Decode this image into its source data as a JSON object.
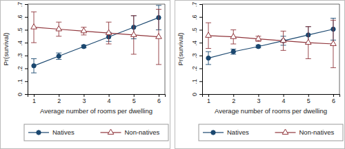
{
  "chart_data": [
    {
      "type": "line",
      "x_label": "Average number of rooms per dwelling",
      "y_label": "Pr(survival)",
      "x": [
        1,
        2,
        3,
        4,
        5,
        6
      ],
      "xlim": [
        0.75,
        6.25
      ],
      "xticks": [
        1,
        2,
        3,
        4,
        5,
        6
      ],
      "ylim": [
        0,
        0.7
      ],
      "yticks": [
        0,
        {
          "value": 0.1,
          "label": ".1"
        },
        {
          "value": 0.2,
          "label": ".2"
        },
        {
          "value": 0.3,
          "label": ".3"
        },
        {
          "value": 0.4,
          "label": ".4"
        },
        {
          "value": 0.5,
          "label": ".5"
        },
        {
          "value": 0.6,
          "label": ".6"
        },
        {
          "value": 0.7,
          "label": ".7"
        }
      ],
      "grid": false,
      "legend": "bottom",
      "series": [
        {
          "name": "Natives",
          "color": "#1a476f",
          "marker": "circle",
          "line_style": "solid",
          "values": [
            0.22,
            0.295,
            0.37,
            0.445,
            0.52,
            0.595
          ],
          "errors": [
            0.055,
            0.025,
            0.01,
            0.035,
            0.09,
            0.095
          ]
        },
        {
          "name": "Non-natives",
          "color": "#90353b",
          "marker": "triangle-open",
          "line_style": "solid",
          "values": [
            0.52,
            0.505,
            0.49,
            0.475,
            0.46,
            0.445
          ],
          "errors": [
            0.12,
            0.055,
            0.03,
            0.085,
            0.15,
            0.215
          ]
        }
      ]
    },
    {
      "type": "line",
      "x_label": "Average number of rooms per dwelling",
      "y_label": "Pr(survival)",
      "x": [
        1,
        2,
        3,
        4,
        5,
        6
      ],
      "xlim": [
        0.75,
        6.25
      ],
      "xticks": [
        1,
        2,
        3,
        4,
        5,
        6
      ],
      "ylim": [
        0,
        0.7
      ],
      "yticks": [
        0,
        {
          "value": 0.1,
          "label": ".1"
        },
        {
          "value": 0.2,
          "label": ".2"
        },
        {
          "value": 0.3,
          "label": ".3"
        },
        {
          "value": 0.4,
          "label": ".4"
        },
        {
          "value": 0.5,
          "label": ".5"
        },
        {
          "value": 0.6,
          "label": ".6"
        },
        {
          "value": 0.7,
          "label": ".7"
        }
      ],
      "grid": false,
      "legend": "bottom",
      "series": [
        {
          "name": "Natives",
          "color": "#1a476f",
          "marker": "circle",
          "line_style": "solid",
          "values": [
            0.28,
            0.33,
            0.37,
            0.415,
            0.46,
            0.505
          ],
          "errors": [
            0.05,
            0.02,
            0.01,
            0.035,
            0.065,
            0.085
          ]
        },
        {
          "name": "Non-natives",
          "color": "#90353b",
          "marker": "triangle-open",
          "line_style": "solid",
          "values": [
            0.455,
            0.445,
            0.43,
            0.415,
            0.4,
            0.39
          ],
          "errors": [
            0.1,
            0.055,
            0.02,
            0.075,
            0.125,
            0.185
          ]
        }
      ]
    }
  ]
}
